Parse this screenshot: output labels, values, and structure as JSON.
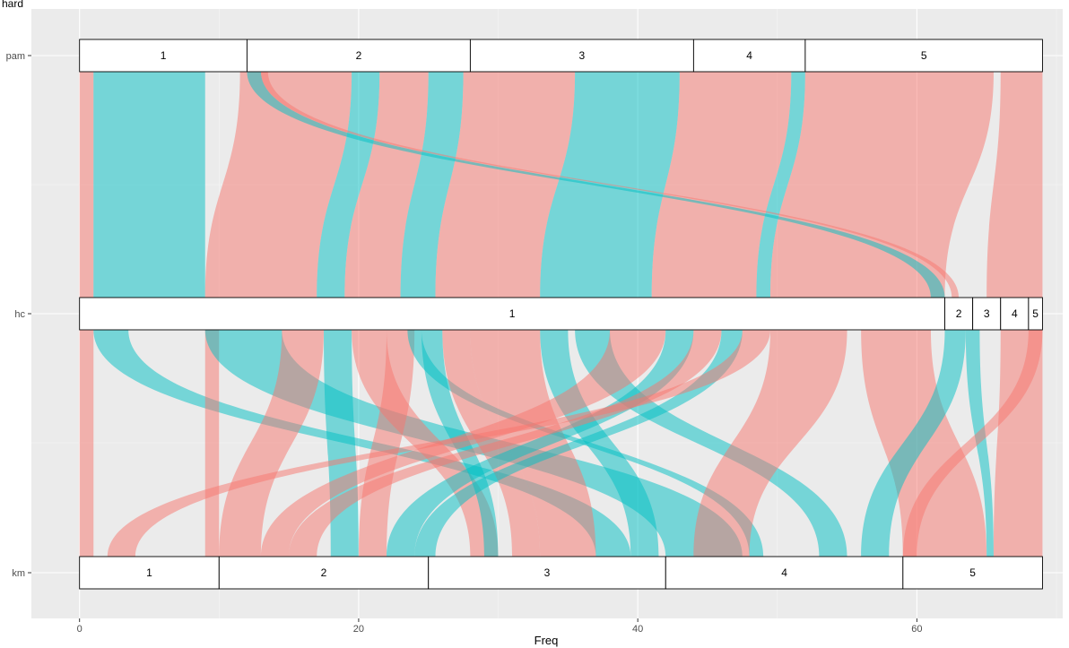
{
  "chart_data": {
    "type": "alluvial",
    "legend": {
      "label": "hard",
      "placement": "top-left"
    },
    "xlabel": "Freq",
    "ylabel": "",
    "xlim": [
      -3.45,
      70.45
    ],
    "x_ticks": [
      0,
      20,
      40,
      60
    ],
    "grid": true,
    "axes": [
      "pam",
      "hc",
      "km"
    ],
    "colors": {
      "red": "#F8766D",
      "teal": "#00BFC4",
      "panel": "#EBEBEB",
      "grid": "#FFFFFF"
    },
    "strata": {
      "pam": [
        {
          "label": "1",
          "start": 0,
          "end": 12
        },
        {
          "label": "2",
          "start": 12,
          "end": 28
        },
        {
          "label": "3",
          "start": 28,
          "end": 44
        },
        {
          "label": "4",
          "start": 44,
          "end": 52
        },
        {
          "label": "5",
          "start": 52,
          "end": 69
        }
      ],
      "hc": [
        {
          "label": "1",
          "start": 0,
          "end": 62
        },
        {
          "label": "2",
          "start": 62,
          "end": 64
        },
        {
          "label": "3",
          "start": 64,
          "end": 66
        },
        {
          "label": "4",
          "start": 66,
          "end": 68
        },
        {
          "label": "5",
          "start": 68,
          "end": 69
        }
      ],
      "km": [
        {
          "label": "1",
          "start": 0,
          "end": 10
        },
        {
          "label": "2",
          "start": 10,
          "end": 25
        },
        {
          "label": "3",
          "start": 25,
          "end": 42
        },
        {
          "label": "4",
          "start": 42,
          "end": 59
        },
        {
          "label": "5",
          "start": 59,
          "end": 69
        }
      ]
    },
    "flows_upper": [
      {
        "color": "red",
        "top": [
          0,
          1
        ],
        "mid": [
          0,
          1
        ]
      },
      {
        "color": "teal",
        "top": [
          1,
          9
        ],
        "mid": [
          1,
          9
        ]
      },
      {
        "color": "red",
        "top": [
          11.5,
          19.5
        ],
        "mid": [
          9,
          17
        ]
      },
      {
        "color": "teal",
        "top": [
          19.5,
          21.5
        ],
        "mid": [
          17,
          19
        ]
      },
      {
        "color": "red",
        "top": [
          21.5,
          25
        ],
        "mid": [
          19,
          23
        ]
      },
      {
        "color": "teal",
        "top": [
          25,
          27.5
        ],
        "mid": [
          23,
          25.5
        ]
      },
      {
        "color": "red",
        "top": [
          27.5,
          35.5
        ],
        "mid": [
          25.5,
          33
        ]
      },
      {
        "color": "teal",
        "top": [
          35.5,
          43
        ],
        "mid": [
          33,
          41
        ]
      },
      {
        "color": "red",
        "top": [
          43,
          51
        ],
        "mid": [
          41,
          48.5
        ]
      },
      {
        "color": "teal",
        "top": [
          51,
          52
        ],
        "mid": [
          48.5,
          49.5
        ]
      },
      {
        "color": "red",
        "top": [
          52,
          65.5
        ],
        "mid": [
          49.5,
          62
        ]
      },
      {
        "color": "red",
        "top": [
          66,
          69
        ],
        "mid": [
          65,
          69
        ]
      },
      {
        "color": "teal",
        "top": [
          12,
          13
        ],
        "mid": [
          61,
          62
        ]
      },
      {
        "color": "red",
        "top": [
          13,
          13.5
        ],
        "mid": [
          62.5,
          63
        ]
      }
    ],
    "flows_lower": [
      {
        "color": "red",
        "mid": [
          0,
          1
        ],
        "bot": [
          0,
          1
        ]
      },
      {
        "color": "teal",
        "mid": [
          1,
          3.5
        ],
        "bot": [
          37,
          39.5
        ]
      },
      {
        "color": "red",
        "mid": [
          9,
          10
        ],
        "bot": [
          9,
          10
        ]
      },
      {
        "color": "teal",
        "mid": [
          9,
          14.5
        ],
        "bot": [
          42,
          47.5
        ]
      },
      {
        "color": "red",
        "mid": [
          14.5,
          17.5
        ],
        "bot": [
          10,
          13
        ]
      },
      {
        "color": "teal",
        "mid": [
          17.5,
          19.5
        ],
        "bot": [
          18,
          20
        ]
      },
      {
        "color": "red",
        "mid": [
          19.5,
          22
        ],
        "bot": [
          28,
          30
        ]
      },
      {
        "color": "red",
        "mid": [
          22,
          24
        ],
        "bot": [
          20,
          22
        ]
      },
      {
        "color": "teal",
        "mid": [
          23.5,
          24.5
        ],
        "bot": [
          48,
          49
        ]
      },
      {
        "color": "teal",
        "mid": [
          24.5,
          26
        ],
        "bot": [
          29,
          30
        ]
      },
      {
        "color": "red",
        "mid": [
          26,
          28
        ],
        "bot": [
          31,
          33
        ]
      },
      {
        "color": "red",
        "mid": [
          28,
          33
        ],
        "bot": [
          33,
          37
        ]
      },
      {
        "color": "teal",
        "mid": [
          33,
          35
        ],
        "bot": [
          39.5,
          41.5
        ]
      },
      {
        "color": "teal",
        "mid": [
          35.5,
          38
        ],
        "bot": [
          53,
          55
        ]
      },
      {
        "color": "red",
        "mid": [
          38,
          42
        ],
        "bot": [
          13,
          15
        ]
      },
      {
        "color": "teal",
        "mid": [
          42,
          44
        ],
        "bot": [
          22,
          24
        ]
      },
      {
        "color": "red",
        "mid": [
          44,
          46
        ],
        "bot": [
          15,
          17
        ]
      },
      {
        "color": "teal",
        "mid": [
          46,
          47.5
        ],
        "bot": [
          24,
          25.5
        ]
      },
      {
        "color": "red",
        "mid": [
          47.5,
          49.5
        ],
        "bot": [
          2,
          4
        ]
      },
      {
        "color": "red",
        "mid": [
          49.5,
          55
        ],
        "bot": [
          44,
          48
        ]
      },
      {
        "color": "red",
        "mid": [
          56,
          61
        ],
        "bot": [
          59,
          65
        ]
      },
      {
        "color": "teal",
        "mid": [
          62,
          63.5
        ],
        "bot": [
          56,
          58
        ]
      },
      {
        "color": "teal",
        "mid": [
          63.5,
          64.5
        ],
        "bot": [
          65,
          65.5
        ]
      },
      {
        "color": "red",
        "mid": [
          66,
          69
        ],
        "bot": [
          65.5,
          69
        ]
      },
      {
        "color": "red",
        "mid": [
          68,
          69
        ],
        "bot": [
          59,
          60
        ]
      }
    ]
  }
}
